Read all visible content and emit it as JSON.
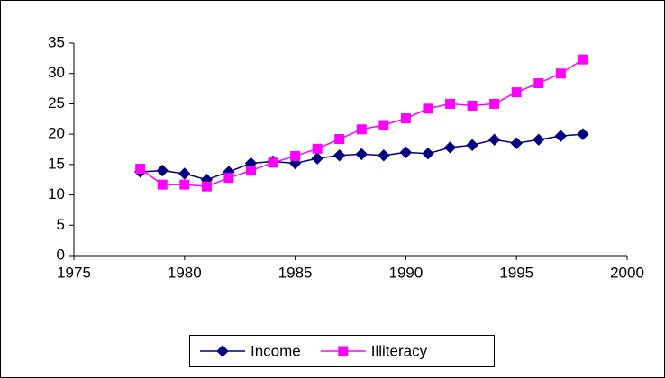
{
  "chart_data": {
    "type": "line",
    "x": [
      1978,
      1979,
      1980,
      1981,
      1982,
      1983,
      1984,
      1985,
      1986,
      1987,
      1988,
      1989,
      1990,
      1991,
      1992,
      1993,
      1994,
      1995,
      1996,
      1997,
      1998
    ],
    "series": [
      {
        "name": "Income",
        "color": "#000080",
        "marker": "diamond",
        "values": [
          13.8,
          14.0,
          13.5,
          12.5,
          13.8,
          15.2,
          15.5,
          15.2,
          16.0,
          16.5,
          16.7,
          16.5,
          17.0,
          16.8,
          17.8,
          18.2,
          19.1,
          18.5,
          19.1,
          19.7,
          20.0
        ]
      },
      {
        "name": "Illiteracy",
        "color": "#ff00ff",
        "marker": "square",
        "values": [
          14.3,
          11.7,
          11.7,
          11.4,
          12.8,
          14.0,
          15.3,
          16.4,
          17.6,
          19.2,
          20.8,
          21.5,
          22.6,
          24.2,
          25.0,
          24.7,
          25.0,
          26.9,
          28.4,
          30.0,
          32.3
        ]
      }
    ],
    "xlim": [
      1975,
      2000
    ],
    "xticks": [
      1975,
      1980,
      1985,
      1990,
      1995,
      2000
    ],
    "ylim": [
      0,
      35
    ],
    "yticks": [
      0,
      5,
      10,
      15,
      20,
      25,
      30,
      35
    ],
    "grid": false,
    "legend": "bottom"
  }
}
